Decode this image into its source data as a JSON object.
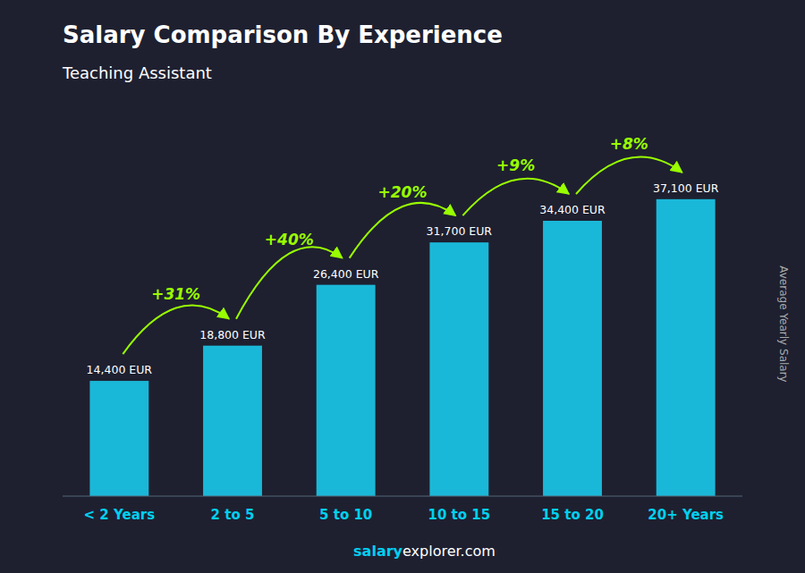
{
  "chart_data": {
    "type": "bar",
    "title": "Salary Comparison By Experience",
    "subtitle": "Teaching Assistant",
    "y_label": "Average Yearly Salary",
    "categories": [
      "< 2 Years",
      "2 to 5",
      "5 to 10",
      "10 to 15",
      "15 to 20",
      "20+ Years"
    ],
    "values": [
      14400,
      18800,
      26400,
      31700,
      34400,
      37100
    ],
    "value_labels": [
      "14,400 EUR",
      "18,800 EUR",
      "26,400 EUR",
      "31,700 EUR",
      "34,400 EUR",
      "37,100 EUR"
    ],
    "data_labels": true,
    "annotations": [
      "+31%",
      "+40%",
      "+20%",
      "+9%",
      "+8%"
    ],
    "footer": [
      "salary",
      "explorer.com"
    ],
    "color": "#1ab8d8",
    "ylim": [
      0,
      43000
    ],
    "tick_labels": "x",
    "grid": false
  }
}
